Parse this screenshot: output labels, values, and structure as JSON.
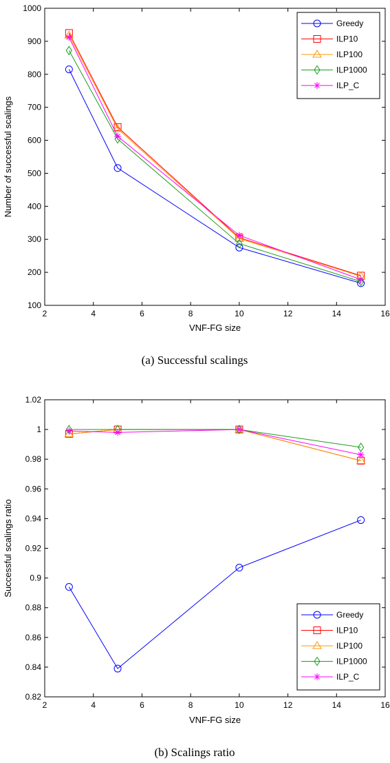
{
  "colors": {
    "Greedy": "#0000ff",
    "ILP10": "#ff0000",
    "ILP100": "#ff9900",
    "ILP1000": "#1a9e1a",
    "ILP_C": "#ff00ff"
  },
  "markers": {
    "Greedy": "circle",
    "ILP10": "square",
    "ILP100": "triangle",
    "ILP1000": "diamond",
    "ILP_C": "asterisk"
  },
  "chart_data": [
    {
      "type": "line",
      "caption": "(a) Successful scalings",
      "xlabel": "VNF-FG size",
      "ylabel": "Number of successful scalings",
      "xlim": [
        2,
        16
      ],
      "ylim": [
        100,
        1000
      ],
      "xticks": [
        2,
        4,
        6,
        8,
        10,
        12,
        14,
        16
      ],
      "yticks": [
        100,
        200,
        300,
        400,
        500,
        600,
        700,
        800,
        900,
        1000
      ],
      "ytick_labels": [
        "100",
        "200",
        "300",
        "400",
        "500",
        "600",
        "700",
        "800",
        "900",
        "1000"
      ],
      "grid": false,
      "legend_position": "top-right",
      "x": [
        3,
        5,
        10,
        15
      ],
      "series": [
        {
          "name": "Greedy",
          "values": [
            815,
            516,
            275,
            167
          ]
        },
        {
          "name": "ILP10",
          "values": [
            925,
            640,
            305,
            190
          ]
        },
        {
          "name": "ILP100",
          "values": [
            918,
            635,
            302,
            188
          ]
        },
        {
          "name": "ILP1000",
          "values": [
            872,
            604,
            287,
            172
          ]
        },
        {
          "name": "ILP_C",
          "values": [
            912,
            612,
            312,
            178
          ]
        }
      ]
    },
    {
      "type": "line",
      "caption": "(b) Scalings ratio",
      "xlabel": "VNF-FG size",
      "ylabel": "Successful scalings ratio",
      "xlim": [
        2,
        16
      ],
      "ylim": [
        0.82,
        1.02
      ],
      "xticks": [
        2,
        4,
        6,
        8,
        10,
        12,
        14,
        16
      ],
      "yticks": [
        0.82,
        0.84,
        0.86,
        0.88,
        0.9,
        0.92,
        0.94,
        0.96,
        0.98,
        1,
        1.02
      ],
      "ytick_labels": [
        "0.82",
        "0.84",
        "0.86",
        "0.88",
        "0.9",
        "0.92",
        "0.94",
        "0.96",
        "0.98",
        "1",
        "1.02"
      ],
      "grid": false,
      "legend_position": "bottom-right",
      "x": [
        3,
        5,
        10,
        15
      ],
      "series": [
        {
          "name": "Greedy",
          "values": [
            0.894,
            0.839,
            0.907,
            0.939
          ]
        },
        {
          "name": "ILP10",
          "values": [
            0.997,
            1.0,
            1.0,
            0.979
          ]
        },
        {
          "name": "ILP100",
          "values": [
            0.997,
            1.0,
            1.0,
            0.979
          ]
        },
        {
          "name": "ILP1000",
          "values": [
            1.0,
            1.0,
            1.0,
            0.988
          ]
        },
        {
          "name": "ILP_C",
          "values": [
            0.999,
            0.998,
            1.0,
            0.983
          ]
        }
      ]
    }
  ]
}
